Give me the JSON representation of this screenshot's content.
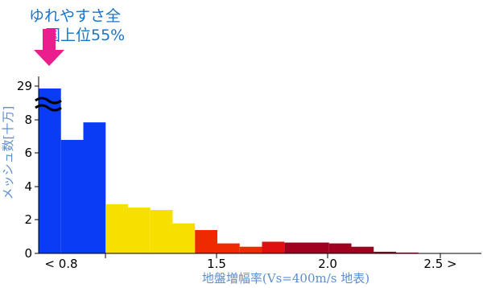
{
  "callout": {
    "line1": "ゆれやすさ全",
    "line2": "国上位55%",
    "color": "#1a74c8",
    "arrow_color": "#ea1e8c"
  },
  "chart_data": {
    "type": "bar",
    "xlabel": "地盤増幅率(Vs=400m/s 地表)",
    "ylabel": "メッシュ数[十万]",
    "x_tick_labels": [
      "< 0.8",
      "1.5",
      "2.0",
      "2.5 >"
    ],
    "y_tick_labels": [
      "0",
      "2",
      "4",
      "6",
      "8",
      "29"
    ],
    "axis_break": "≈",
    "bars": [
      {
        "value": 29.0,
        "color": "#0a3cf5",
        "broken": true
      },
      {
        "value": 6.8,
        "color": "#0a3cf5"
      },
      {
        "value": 7.85,
        "color": "#0a3cf5"
      },
      {
        "value": 2.95,
        "color": "#f7e000"
      },
      {
        "value": 2.75,
        "color": "#f7e000"
      },
      {
        "value": 2.6,
        "color": "#f7e000"
      },
      {
        "value": 1.8,
        "color": "#f7e000"
      },
      {
        "value": 1.4,
        "color": "#f02a00"
      },
      {
        "value": 0.6,
        "color": "#f02a00"
      },
      {
        "value": 0.4,
        "color": "#f02a00"
      },
      {
        "value": 0.7,
        "color": "#e01010"
      },
      {
        "value": 0.65,
        "color": "#a00020"
      },
      {
        "value": 0.65,
        "color": "#a00020"
      },
      {
        "value": 0.6,
        "color": "#a00020"
      },
      {
        "value": 0.4,
        "color": "#a00020"
      },
      {
        "value": 0.1,
        "color": "#a00020"
      },
      {
        "value": 0.05,
        "color": "#a00020"
      }
    ]
  }
}
